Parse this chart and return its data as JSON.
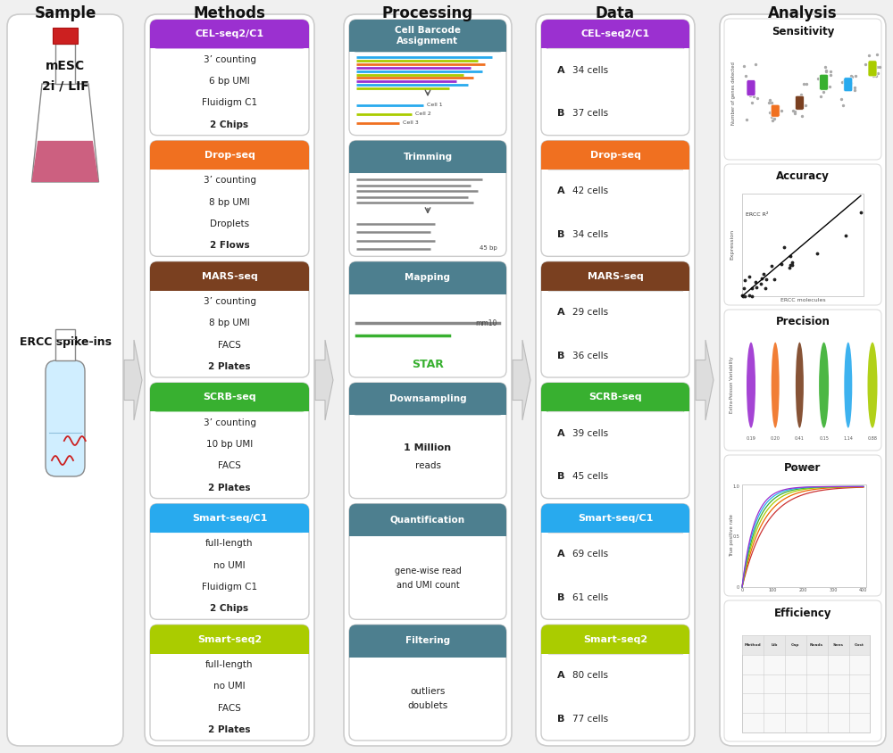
{
  "bg_color": "#f0f0f0",
  "panel_bg": "#ffffff",
  "columns": [
    "Sample",
    "Methods",
    "Processing",
    "Data",
    "Analysis"
  ],
  "methods": [
    {
      "name": "CEL-seq2/C1",
      "color": "#9b30d0",
      "text_color": "#ffffff",
      "details": [
        "3’ counting",
        "6 bp UMI",
        "Fluidigm C1",
        "2 Chips"
      ]
    },
    {
      "name": "Drop-seq",
      "color": "#f07020",
      "text_color": "#ffffff",
      "details": [
        "3’ counting",
        "8 bp UMI",
        "Droplets",
        "2 Flows"
      ]
    },
    {
      "name": "MARS-seq",
      "color": "#7a4020",
      "text_color": "#ffffff",
      "details": [
        "3’ counting",
        "8 bp UMI",
        "FACS",
        "2 Plates"
      ]
    },
    {
      "name": "SCRB-seq",
      "color": "#38b030",
      "text_color": "#ffffff",
      "details": [
        "3’ counting",
        "10 bp UMI",
        "FACS",
        "2 Plates"
      ]
    },
    {
      "name": "Smart-seq/C1",
      "color": "#28aaee",
      "text_color": "#ffffff",
      "details": [
        "full-length",
        "no UMI",
        "Fluidigm C1",
        "2 Chips"
      ]
    },
    {
      "name": "Smart-seq2",
      "color": "#aacc00",
      "text_color": "#ffffff",
      "details": [
        "full-length",
        "no UMI",
        "FACS",
        "2 Plates"
      ]
    }
  ],
  "processing_names": [
    "Cell Barcode\nAssignment",
    "Trimming",
    "Mapping",
    "Downsampling",
    "Quantification",
    "Filtering"
  ],
  "processing_color": "#4d7f8f",
  "processing_details": [
    null,
    "45 bp",
    "mm10\nSTAR",
    "1 Million\nreads",
    "gene-wise read\nand UMI count",
    "outliers\ndoublets"
  ],
  "processing_detail_bold": [
    false,
    false,
    false,
    true,
    false,
    false
  ],
  "data_panels": [
    {
      "name": "CEL-seq2/C1",
      "color": "#9b30d0",
      "text_color": "#ffffff",
      "cells": [
        [
          "A",
          "34 cells"
        ],
        [
          "B",
          "37 cells"
        ]
      ]
    },
    {
      "name": "Drop-seq",
      "color": "#f07020",
      "text_color": "#ffffff",
      "cells": [
        [
          "A",
          "42 cells"
        ],
        [
          "B",
          "34 cells"
        ]
      ]
    },
    {
      "name": "MARS-seq",
      "color": "#7a4020",
      "text_color": "#ffffff",
      "cells": [
        [
          "A",
          "29 cells"
        ],
        [
          "B",
          "36 cells"
        ]
      ]
    },
    {
      "name": "SCRB-seq",
      "color": "#38b030",
      "text_color": "#ffffff",
      "cells": [
        [
          "A",
          "39 cells"
        ],
        [
          "B",
          "45 cells"
        ]
      ]
    },
    {
      "name": "Smart-seq/C1",
      "color": "#28aaee",
      "text_color": "#ffffff",
      "cells": [
        [
          "A",
          "69 cells"
        ],
        [
          "B",
          "61 cells"
        ]
      ]
    },
    {
      "name": "Smart-seq2",
      "color": "#aacc00",
      "text_color": "#ffffff",
      "cells": [
        [
          "A",
          "80 cells"
        ],
        [
          "B",
          "77 cells"
        ]
      ]
    }
  ],
  "analysis_titles": [
    "Sensitivity",
    "Accuracy",
    "Precision",
    "Power",
    "Efficiency"
  ],
  "method_colors6": [
    "#9b30d0",
    "#f07020",
    "#7a4020",
    "#38b030",
    "#28aaee",
    "#aacc00"
  ],
  "proc_barcode_colors": [
    "#28aaee",
    "#aacc00",
    "#f07020",
    "#28aaee",
    "#aacc00",
    "#f07020",
    "#9b30d0",
    "#aacc00"
  ],
  "teal_color": "#4d7f8f"
}
